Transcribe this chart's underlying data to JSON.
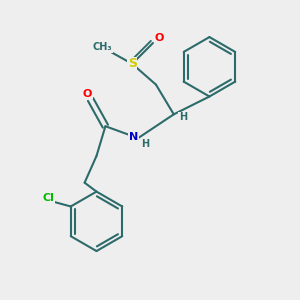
{
  "background_color": "#eeeeee",
  "bond_color": "#2d6b6b",
  "bond_width": 1.5,
  "atom_colors": {
    "O": "#ff0000",
    "N": "#0000cc",
    "S": "#cccc00",
    "Cl": "#00bb00",
    "C": "#2d6b6b"
  },
  "fig_width": 3.0,
  "fig_height": 3.0,
  "dpi": 100,
  "xlim": [
    0,
    10
  ],
  "ylim": [
    0,
    10
  ]
}
